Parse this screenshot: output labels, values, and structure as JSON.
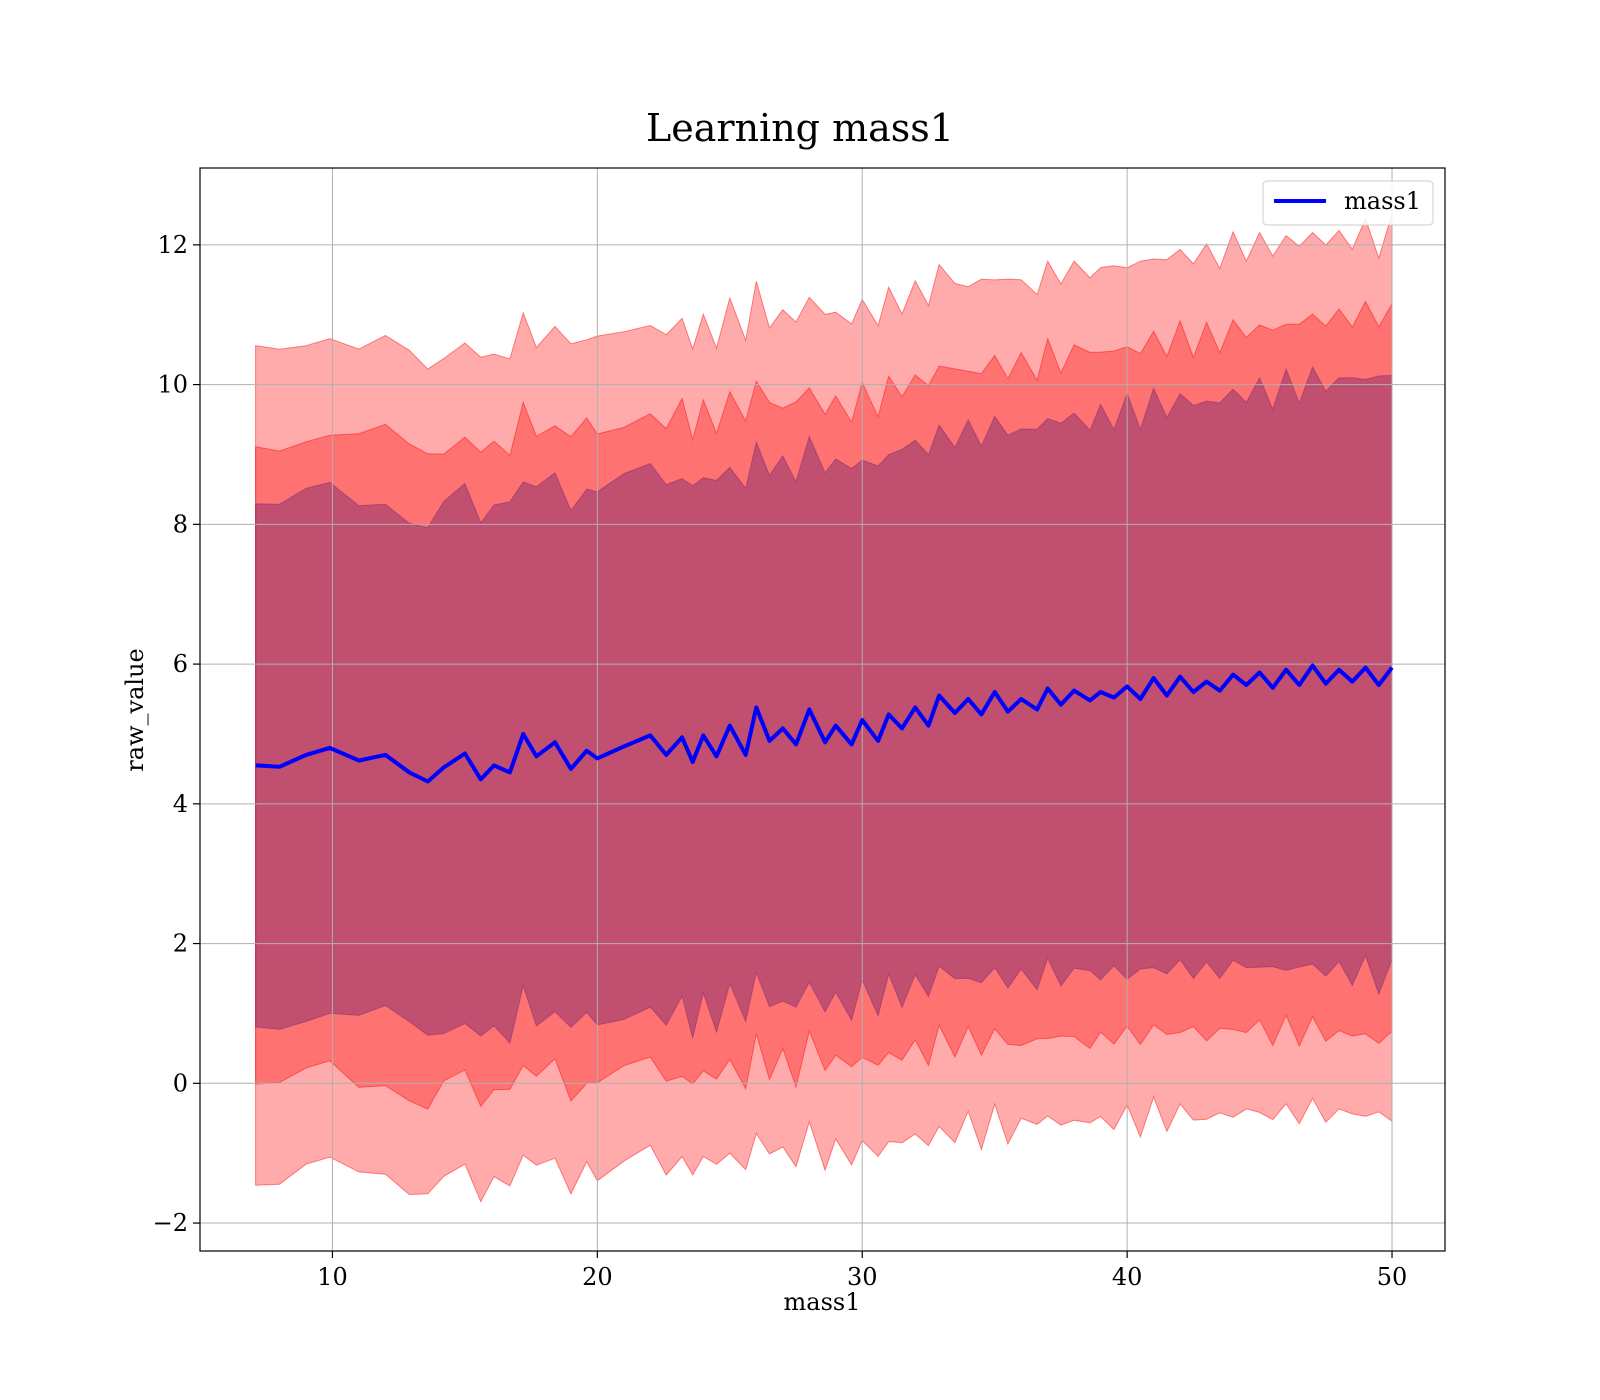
{
  "chart_data": {
    "type": "line",
    "title": "Learning mass1",
    "xlabel": "mass1",
    "ylabel": "raw_value",
    "xlim": [
      5,
      52
    ],
    "ylim": [
      -2.4,
      13.1
    ],
    "xticks": [
      10,
      20,
      30,
      40,
      50
    ],
    "yticks": [
      -2,
      0,
      2,
      4,
      6,
      8,
      10,
      12
    ],
    "xtick_labels": [
      "10",
      "20",
      "30",
      "40",
      "50"
    ],
    "ytick_labels": [
      "−2",
      "0",
      "2",
      "4",
      "6",
      "8",
      "10",
      "12"
    ],
    "grid": true,
    "legend": {
      "position": "top-right",
      "entries": [
        "mass1"
      ]
    },
    "colors": {
      "line": "#0000ff",
      "band": "#ff0000",
      "band_opacity": 0.33
    },
    "series": [
      {
        "name": "mass1",
        "x": [
          7.1,
          8,
          9,
          9.9,
          11,
          12,
          12.9,
          13.6,
          14.2,
          15,
          15.6,
          16.1,
          16.7,
          17.2,
          17.7,
          18.4,
          19,
          19.6,
          20,
          21,
          22,
          22.6,
          23.2,
          23.6,
          24,
          24.5,
          25,
          25.6,
          26,
          26.5,
          27,
          27.5,
          28,
          28.6,
          29,
          29.6,
          30,
          30.6,
          31,
          31.5,
          32,
          32.5,
          32.9,
          33.5,
          34,
          34.5,
          35,
          35.5,
          36,
          36.6,
          37,
          37.5,
          38,
          38.6,
          39,
          39.5,
          40,
          40.5,
          41,
          41.5,
          42,
          42.5,
          43,
          43.5,
          44,
          44.5,
          45,
          45.5,
          46,
          46.5,
          47,
          47.5,
          48,
          48.5,
          49,
          49.5,
          50
        ],
        "values": [
          4.55,
          4.53,
          4.7,
          4.8,
          4.62,
          4.7,
          4.45,
          4.32,
          4.52,
          4.72,
          4.35,
          4.55,
          4.45,
          5.0,
          4.68,
          4.88,
          4.5,
          4.76,
          4.65,
          4.82,
          4.98,
          4.7,
          4.95,
          4.6,
          4.98,
          4.68,
          5.12,
          4.7,
          5.38,
          4.9,
          5.08,
          4.85,
          5.35,
          4.88,
          5.12,
          4.85,
          5.2,
          4.9,
          5.28,
          5.08,
          5.38,
          5.12,
          5.55,
          5.3,
          5.5,
          5.28,
          5.6,
          5.32,
          5.5,
          5.35,
          5.65,
          5.42,
          5.62,
          5.48,
          5.6,
          5.52,
          5.68,
          5.5,
          5.8,
          5.55,
          5.82,
          5.6,
          5.75,
          5.62,
          5.85,
          5.7,
          5.88,
          5.66,
          5.92,
          5.7,
          5.98,
          5.72,
          5.92,
          5.75,
          5.95,
          5.7,
          5.95
        ],
        "band_inner_offset": [
          4.6,
          4.6,
          4.65,
          4.7,
          4.75,
          4.8,
          4.9,
          5.0,
          5.2
        ],
        "band_outer_offset": [
          5.95,
          5.95,
          5.95,
          5.95,
          6.0,
          6.05,
          6.1,
          6.2,
          6.3
        ]
      }
    ]
  }
}
